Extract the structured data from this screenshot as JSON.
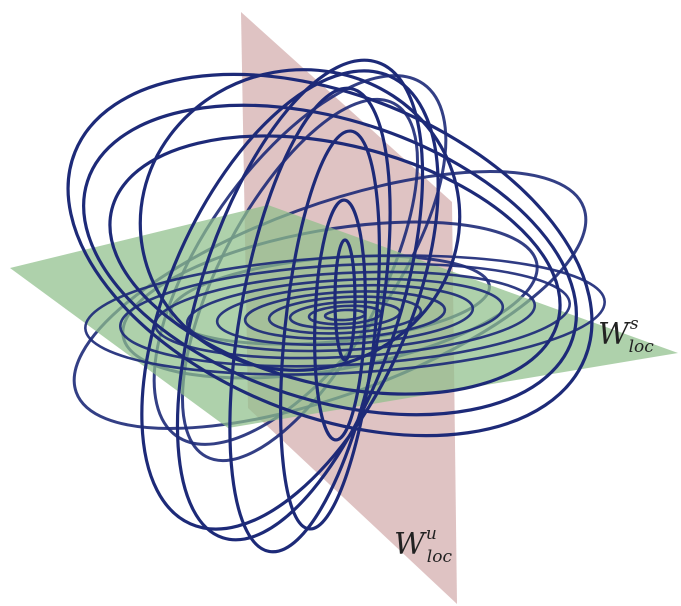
{
  "figure": {
    "labels": {
      "stable_manifold": {
        "main": "W",
        "superscript": "s",
        "subscript": "loc"
      },
      "unstable_manifold": {
        "main": "W",
        "superscript": "u",
        "subscript": "loc"
      }
    },
    "colors": {
      "background": "#ffffff",
      "horizontal_plane": "#8fbf8a",
      "vertical_plane": "#d9b8b8",
      "orbit_curves": "#1d2a78"
    }
  }
}
